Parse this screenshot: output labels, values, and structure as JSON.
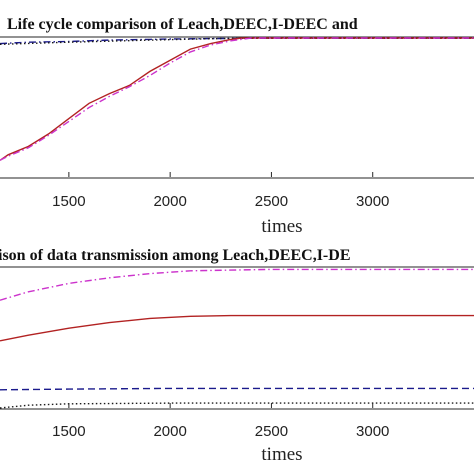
{
  "chart_data": [
    {
      "type": "line",
      "title": "Life cycle comparison of Leach,DEEC,I-DEEC and",
      "xlabel": "times",
      "ylabel": "",
      "xlim": [
        1160,
        3500
      ],
      "ylim": [
        0,
        1
      ],
      "xticks": [
        "1500",
        "2000",
        "2500",
        "3000"
      ],
      "grid": false,
      "series": [
        {
          "color": "#1a1a8c",
          "style": "dashdot",
          "x": [
            1160,
            1300,
            1500,
            1700,
            1900,
            2000,
            2200,
            2400,
            3500
          ],
          "y": [
            0.96,
            0.97,
            0.975,
            0.985,
            0.99,
            0.993,
            0.996,
            0.998,
            0.998
          ]
        },
        {
          "color": "#1a1a1a",
          "style": "dotted",
          "x": [
            1160,
            1500,
            1900,
            2200,
            2400,
            3500
          ],
          "y": [
            0.955,
            0.97,
            0.985,
            0.995,
            0.998,
            0.998
          ]
        },
        {
          "color": "#b22222",
          "style": "solid",
          "x": [
            1160,
            1200,
            1300,
            1400,
            1500,
            1600,
            1700,
            1800,
            1900,
            2000,
            2100,
            2200,
            2300,
            2350,
            3500
          ],
          "y": [
            0.12,
            0.16,
            0.22,
            0.31,
            0.42,
            0.53,
            0.6,
            0.66,
            0.76,
            0.84,
            0.92,
            0.96,
            0.99,
            1.0,
            1.0
          ]
        },
        {
          "color": "#cc33cc",
          "style": "dashdot",
          "x": [
            1160,
            1200,
            1300,
            1400,
            1500,
            1600,
            1700,
            1800,
            1900,
            2000,
            2100,
            2200,
            2300,
            2400,
            3500
          ],
          "y": [
            0.12,
            0.15,
            0.21,
            0.3,
            0.4,
            0.5,
            0.58,
            0.65,
            0.73,
            0.82,
            0.9,
            0.95,
            0.98,
            1.0,
            1.0
          ]
        }
      ]
    },
    {
      "type": "line",
      "title": "ison of data transmission among Leach,DEEC,I-DE",
      "xlabel": "times",
      "ylabel": "",
      "xlim": [
        1160,
        3500
      ],
      "ylim": [
        0,
        1
      ],
      "xticks": [
        "1500",
        "2000",
        "2500",
        "3000"
      ],
      "grid": false,
      "series": [
        {
          "color": "#cc33cc",
          "style": "dashdot",
          "x": [
            1160,
            1300,
            1500,
            1700,
            1900,
            2100,
            2300,
            2500,
            2700,
            3500
          ],
          "y": [
            0.77,
            0.83,
            0.89,
            0.93,
            0.96,
            0.98,
            0.985,
            0.99,
            0.99,
            0.99
          ]
        },
        {
          "color": "#b22222",
          "style": "solid",
          "x": [
            1160,
            1300,
            1500,
            1700,
            1900,
            2100,
            2300,
            2500,
            3500
          ],
          "y": [
            0.48,
            0.52,
            0.57,
            0.61,
            0.64,
            0.655,
            0.66,
            0.66,
            0.66
          ]
        },
        {
          "color": "#1a1a8c",
          "style": "dashed",
          "x": [
            1160,
            1500,
            2000,
            2500,
            3500
          ],
          "y": [
            0.13,
            0.135,
            0.14,
            0.14,
            0.14
          ]
        },
        {
          "color": "#1a1a1a",
          "style": "dotted",
          "x": [
            1160,
            1300,
            1500,
            2000,
            2500,
            3500
          ],
          "y": [
            0.0,
            0.02,
            0.03,
            0.035,
            0.035,
            0.035
          ]
        }
      ]
    }
  ]
}
